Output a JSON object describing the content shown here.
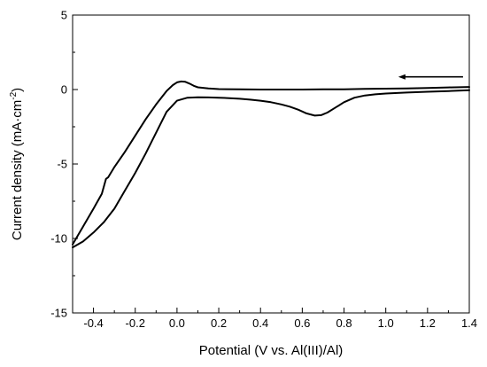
{
  "chart_data": {
    "type": "line",
    "title": "",
    "xlabel": "Potential (V vs. Al(III)/Al)",
    "ylabel": "Current density (mA·cm⁻²)",
    "ylabel_sup": "-2",
    "xlim": [
      -0.5,
      1.4
    ],
    "ylim": [
      -15,
      5
    ],
    "xticks": [
      -0.4,
      -0.2,
      0.0,
      0.2,
      0.4,
      0.6,
      0.8,
      1.0,
      1.2,
      1.4
    ],
    "xtick_labels": [
      "-0.4",
      "-0.2",
      "0.0",
      "0.2",
      "0.4",
      "0.6",
      "0.8",
      "1.0",
      "1.2",
      "1.4"
    ],
    "yticks": [
      -15,
      -10,
      -5,
      0,
      5
    ],
    "ytick_labels": [
      "-15",
      "-10",
      "-5",
      "0",
      "5"
    ],
    "grid": false,
    "legend": "none",
    "scan_direction_arrow": {
      "from": [
        1.37,
        0.85
      ],
      "to": [
        1.06,
        0.85
      ]
    },
    "series": [
      {
        "x": [
          1.4,
          1.3,
          1.2,
          1.1,
          1.0,
          0.95,
          0.9,
          0.85,
          0.8,
          0.76,
          0.72,
          0.69,
          0.66,
          0.62,
          0.58,
          0.54,
          0.5,
          0.45,
          0.4,
          0.35,
          0.3,
          0.25,
          0.2,
          0.15,
          0.1,
          0.05,
          0.0,
          -0.05,
          -0.1,
          -0.15,
          -0.2,
          -0.25,
          -0.3,
          -0.35,
          -0.4,
          -0.45,
          -0.5
        ],
        "y": [
          -0.05,
          -0.1,
          -0.15,
          -0.2,
          -0.27,
          -0.32,
          -0.4,
          -0.55,
          -0.85,
          -1.2,
          -1.55,
          -1.72,
          -1.75,
          -1.6,
          -1.35,
          -1.15,
          -1.0,
          -0.85,
          -0.75,
          -0.68,
          -0.62,
          -0.58,
          -0.55,
          -0.53,
          -0.52,
          -0.55,
          -0.75,
          -1.5,
          -2.9,
          -4.3,
          -5.6,
          -6.8,
          -8.0,
          -8.9,
          -9.6,
          -10.2,
          -10.6
        ]
      },
      {
        "x": [
          -0.5,
          -0.45,
          -0.4,
          -0.36,
          -0.34,
          -0.33,
          -0.3,
          -0.25,
          -0.2,
          -0.15,
          -0.1,
          -0.05,
          -0.02,
          0.0,
          0.02,
          0.04,
          0.06,
          0.08,
          0.1,
          0.15,
          0.2,
          0.3,
          0.4,
          0.5,
          0.6,
          0.7,
          0.8,
          0.9,
          1.0,
          1.1,
          1.2,
          1.3,
          1.4
        ],
        "y": [
          -10.4,
          -9.2,
          -8.0,
          -7.0,
          -6.0,
          -5.9,
          -5.2,
          -4.2,
          -3.1,
          -2.0,
          -1.0,
          -0.1,
          0.3,
          0.48,
          0.54,
          0.52,
          0.4,
          0.25,
          0.15,
          0.07,
          0.03,
          0.01,
          0.0,
          0.0,
          0.0,
          0.01,
          0.02,
          0.04,
          0.06,
          0.08,
          0.11,
          0.14,
          0.17
        ]
      }
    ]
  }
}
